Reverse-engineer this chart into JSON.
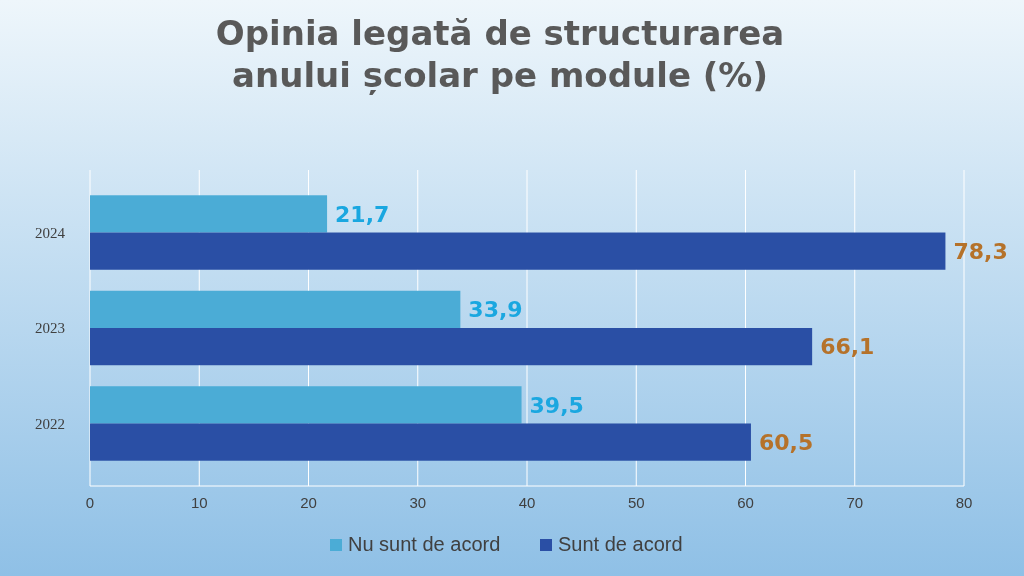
{
  "chart_data": {
    "type": "bar",
    "orientation": "horizontal",
    "title": "Opinia legată de structurarea anului școlar pe module (%)",
    "categories": [
      "2024",
      "2023",
      "2022"
    ],
    "series": [
      {
        "name": "Nu sunt de acord",
        "color": "#4bacd6",
        "values": [
          21.7,
          33.9,
          39.5
        ],
        "value_labels": [
          "21,7",
          "33,9",
          "39,5"
        ]
      },
      {
        "name": "Sunt de acord",
        "color": "#2a4fa5",
        "values": [
          78.3,
          66.1,
          60.5
        ],
        "value_labels": [
          "78,3",
          "66,1",
          "60,5"
        ]
      }
    ],
    "xlim": [
      0,
      80
    ],
    "xticks": [
      0,
      10,
      20,
      30,
      40,
      50,
      60,
      70,
      80
    ],
    "grid": "x",
    "legend": "bottom"
  }
}
